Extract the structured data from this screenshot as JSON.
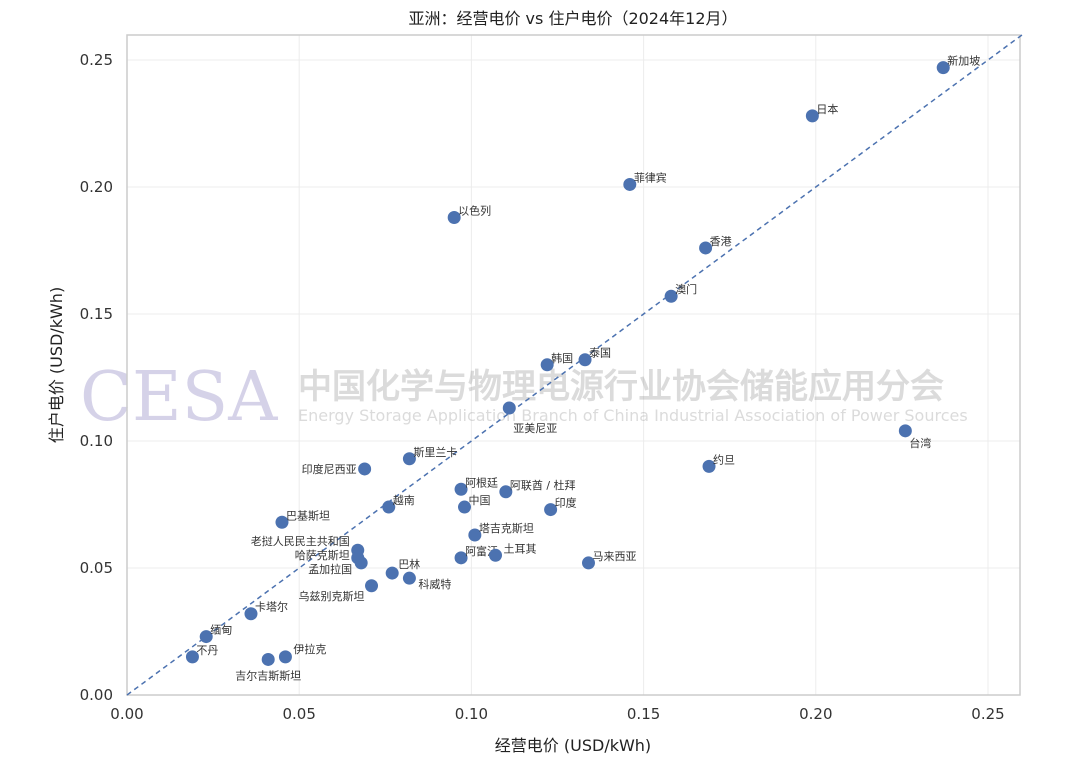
{
  "chart_data": {
    "type": "scatter",
    "title": "亚洲：经营电价 vs 住户电价（2024年12月）",
    "xlabel": "经营电价 (USD/kWh)",
    "ylabel": "住户电价 (USD/kWh)",
    "xlim": [
      0,
      0.26
    ],
    "ylim": [
      0,
      0.26
    ],
    "xticks": [
      "0.00",
      "0.05",
      "0.10",
      "0.15",
      "0.20",
      "0.25"
    ],
    "yticks": [
      "0.00",
      "0.05",
      "0.10",
      "0.15",
      "0.20",
      "0.25"
    ],
    "grid": true,
    "reference_line": "y = x (dashed)",
    "point_color": "#4c72b0",
    "points": [
      {
        "label": "新加坡",
        "x": 0.237,
        "y": 0.247
      },
      {
        "label": "日本",
        "x": 0.199,
        "y": 0.228
      },
      {
        "label": "菲律宾",
        "x": 0.146,
        "y": 0.201
      },
      {
        "label": "以色列",
        "x": 0.095,
        "y": 0.188
      },
      {
        "label": "香港",
        "x": 0.168,
        "y": 0.176
      },
      {
        "label": "澳门",
        "x": 0.158,
        "y": 0.157
      },
      {
        "label": "泰国",
        "x": 0.133,
        "y": 0.132
      },
      {
        "label": "韩国",
        "x": 0.122,
        "y": 0.13
      },
      {
        "label": "亚美尼亚",
        "x": 0.111,
        "y": 0.113
      },
      {
        "label": "台湾",
        "x": 0.226,
        "y": 0.104
      },
      {
        "label": "约旦",
        "x": 0.169,
        "y": 0.09
      },
      {
        "label": "斯里兰卡",
        "x": 0.082,
        "y": 0.093
      },
      {
        "label": "印度尼西亚",
        "x": 0.069,
        "y": 0.089
      },
      {
        "label": "阿根廷",
        "x": 0.097,
        "y": 0.081
      },
      {
        "label": "阿联酋 / 杜拜",
        "x": 0.11,
        "y": 0.08
      },
      {
        "label": "中国",
        "x": 0.098,
        "y": 0.074
      },
      {
        "label": "印度",
        "x": 0.123,
        "y": 0.073
      },
      {
        "label": "越南",
        "x": 0.076,
        "y": 0.074
      },
      {
        "label": "巴基斯坦",
        "x": 0.045,
        "y": 0.068
      },
      {
        "label": "塔吉克斯坦",
        "x": 0.101,
        "y": 0.063
      },
      {
        "label": "阿富汗",
        "x": 0.097,
        "y": 0.054
      },
      {
        "label": "土耳其",
        "x": 0.107,
        "y": 0.055
      },
      {
        "label": "马来西亚",
        "x": 0.134,
        "y": 0.052
      },
      {
        "label": "老挝人民民主共和国",
        "x": 0.067,
        "y": 0.057
      },
      {
        "label": "哈萨克斯坦",
        "x": 0.067,
        "y": 0.054
      },
      {
        "label": "孟加拉国",
        "x": 0.068,
        "y": 0.052
      },
      {
        "label": "巴林",
        "x": 0.077,
        "y": 0.048
      },
      {
        "label": "科威特",
        "x": 0.082,
        "y": 0.046
      },
      {
        "label": "乌兹别克斯坦",
        "x": 0.071,
        "y": 0.043
      },
      {
        "label": "卡塔尔",
        "x": 0.036,
        "y": 0.032
      },
      {
        "label": "缅甸",
        "x": 0.023,
        "y": 0.023
      },
      {
        "label": "不丹",
        "x": 0.019,
        "y": 0.015
      },
      {
        "label": "吉尔吉斯斯坦",
        "x": 0.041,
        "y": 0.014
      },
      {
        "label": "伊拉克",
        "x": 0.046,
        "y": 0.015
      }
    ]
  },
  "watermark": {
    "logo": "CESA",
    "cn": "中国化学与物理电源行业协会储能应用分会",
    "en": "Energy Storage Application Branch of China Industrial Association of Power Sources"
  }
}
